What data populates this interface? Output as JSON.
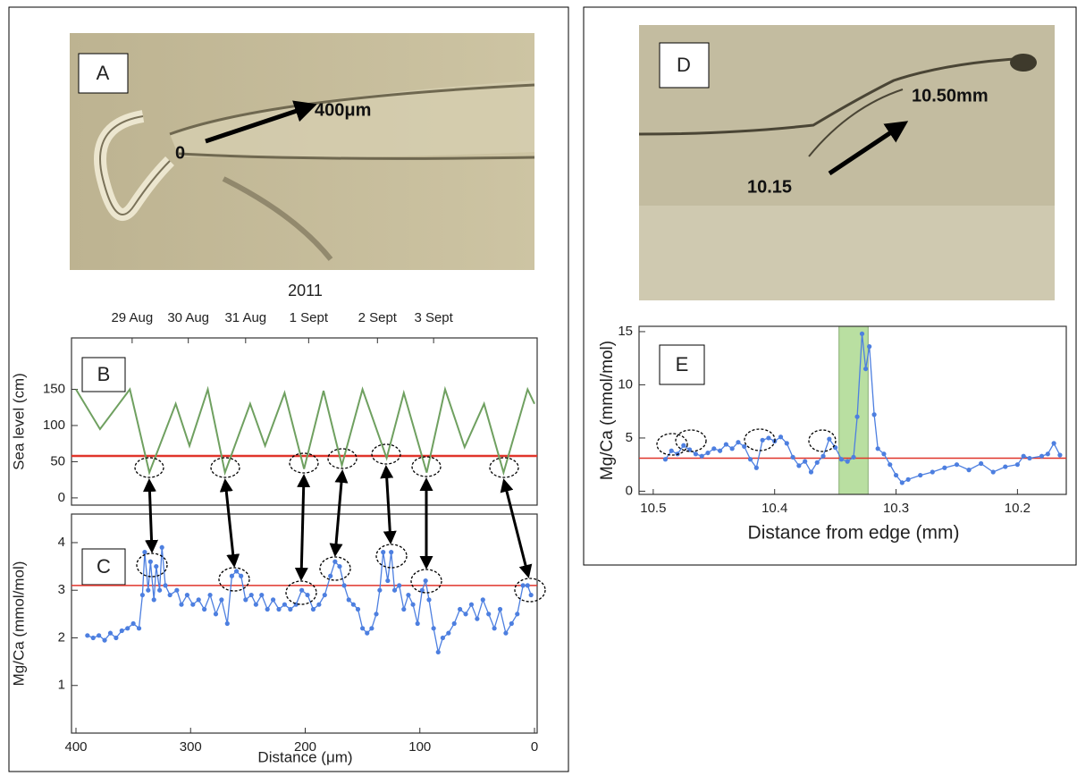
{
  "panel_labels": [
    "A",
    "B",
    "C",
    "D",
    "E"
  ],
  "photo_a": {
    "annotations": [
      "0",
      "400μm"
    ]
  },
  "photo_d": {
    "annotations": [
      "10.15",
      "10.50mm"
    ]
  },
  "chart_data": [
    {
      "type": "line",
      "ylabel": "Sea level (cm)",
      "top_label": "2011",
      "top_ticks": [
        {
          "value": 351,
          "label": "29 Aug"
        },
        {
          "value": 302,
          "label": "30 Aug"
        },
        {
          "value": 252,
          "label": "31 Aug"
        },
        {
          "value": 197,
          "label": "1 Sept"
        },
        {
          "value": 137,
          "label": "2 Sept"
        },
        {
          "value": 88,
          "label": "3 Sept"
        }
      ],
      "x": [
        400,
        379,
        353,
        336,
        313,
        301,
        285,
        270,
        248,
        235,
        218,
        201,
        184,
        168,
        150,
        129,
        114,
        94,
        78,
        61,
        44,
        27,
        6,
        0
      ],
      "series": [
        {
          "color": "#6fa060",
          "values": [
            150,
            95,
            150,
            35,
            130,
            72,
            150,
            35,
            130,
            72,
            145,
            40,
            148,
            45,
            150,
            55,
            145,
            35,
            150,
            70,
            130,
            35,
            150,
            130
          ]
        }
      ],
      "xlim": [
        400,
        0
      ],
      "ylim": [
        -10,
        221
      ],
      "yticks": [
        0,
        50,
        100,
        150
      ],
      "reference_line": 58,
      "reference_color": "#e0352b",
      "markers": false
    },
    {
      "type": "line",
      "ylabel": "Mg/Ca (mmol/mol)",
      "xlabel": "Distance (μm)",
      "x": [
        390,
        385,
        380,
        375,
        370,
        365,
        360,
        355,
        350,
        345,
        342,
        340,
        337,
        335,
        332,
        330,
        327,
        325,
        322,
        318,
        312,
        308,
        303,
        298,
        293,
        288,
        283,
        278,
        273,
        268,
        264,
        260,
        256,
        252,
        247,
        243,
        238,
        233,
        228,
        223,
        218,
        213,
        208,
        203,
        198,
        193,
        188,
        183,
        178,
        174,
        170,
        166,
        162,
        158,
        154,
        150,
        146,
        142,
        138,
        135,
        132,
        128,
        125,
        122,
        118,
        114,
        110,
        106,
        102,
        98,
        95,
        92,
        88,
        84,
        80,
        75,
        70,
        65,
        60,
        55,
        50,
        45,
        40,
        35,
        30,
        25,
        20,
        15,
        10,
        6,
        3
      ],
      "series": [
        {
          "color": "#4d7fe0",
          "values": [
            2.05,
            2.0,
            2.05,
            1.95,
            2.1,
            2.0,
            2.15,
            2.2,
            2.3,
            2.2,
            2.9,
            3.8,
            3.0,
            3.6,
            2.8,
            3.5,
            3.0,
            3.9,
            3.1,
            2.9,
            3.0,
            2.7,
            2.9,
            2.7,
            2.8,
            2.6,
            2.9,
            2.5,
            2.8,
            2.3,
            3.3,
            3.4,
            3.3,
            2.8,
            2.9,
            2.7,
            2.9,
            2.6,
            2.8,
            2.6,
            2.7,
            2.6,
            2.7,
            3.0,
            2.9,
            2.6,
            2.7,
            2.9,
            3.3,
            3.6,
            3.5,
            3.1,
            2.8,
            2.7,
            2.6,
            2.2,
            2.1,
            2.2,
            2.5,
            3.0,
            3.8,
            3.2,
            3.8,
            3.0,
            3.1,
            2.6,
            2.9,
            2.7,
            2.3,
            3.0,
            3.2,
            2.8,
            2.2,
            1.7,
            2.0,
            2.1,
            2.3,
            2.6,
            2.5,
            2.7,
            2.4,
            2.8,
            2.5,
            2.2,
            2.6,
            2.1,
            2.3,
            2.5,
            3.1,
            3.1,
            2.9
          ]
        }
      ],
      "xlim": [
        400,
        0
      ],
      "ylim": [
        0,
        4.6
      ],
      "xticks": [
        400,
        300,
        200,
        100,
        0
      ],
      "yticks": [
        1,
        2,
        3,
        4
      ],
      "reference_line": 3.1,
      "reference_color": "#e0352b",
      "markers": true
    },
    {
      "type": "line",
      "ylabel": "Mg/Ca (mmol/mol)",
      "xlabel": "Distance from edge (mm)",
      "x": [
        10.49,
        10.485,
        10.48,
        10.475,
        10.47,
        10.465,
        10.46,
        10.455,
        10.45,
        10.445,
        10.44,
        10.435,
        10.43,
        10.425,
        10.42,
        10.415,
        10.41,
        10.405,
        10.4,
        10.395,
        10.39,
        10.385,
        10.38,
        10.375,
        10.37,
        10.365,
        10.36,
        10.355,
        10.35,
        10.345,
        10.34,
        10.335,
        10.332,
        10.328,
        10.325,
        10.322,
        10.318,
        10.315,
        10.31,
        10.305,
        10.3,
        10.295,
        10.29,
        10.28,
        10.27,
        10.26,
        10.25,
        10.24,
        10.23,
        10.22,
        10.21,
        10.2,
        10.195,
        10.19,
        10.18,
        10.175,
        10.17,
        10.165
      ],
      "series": [
        {
          "color": "#4d7fe0",
          "values": [
            3.0,
            3.8,
            3.5,
            4.3,
            3.9,
            3.5,
            3.3,
            3.6,
            4.0,
            3.8,
            4.4,
            4.0,
            4.6,
            4.2,
            3.0,
            2.2,
            4.8,
            5.0,
            4.7,
            5.1,
            4.5,
            3.2,
            2.4,
            2.8,
            1.8,
            2.7,
            3.3,
            4.9,
            4.1,
            3.0,
            2.8,
            3.2,
            7.0,
            14.8,
            11.5,
            13.6,
            7.2,
            4.0,
            3.5,
            2.5,
            1.5,
            0.8,
            1.1,
            1.5,
            1.8,
            2.2,
            2.5,
            2.0,
            2.6,
            1.8,
            2.3,
            2.5,
            3.3,
            3.1,
            3.3,
            3.5,
            4.5,
            3.4
          ]
        }
      ],
      "xlim": [
        10.508,
        10.162
      ],
      "ylim": [
        -0.3,
        15.5
      ],
      "xticks": [
        10.5,
        10.4,
        10.3,
        10.2
      ],
      "yticks": [
        0,
        5,
        10,
        15
      ],
      "reference_line": 3.1,
      "reference_color": "#e0352b",
      "markers": true,
      "highlight_span": [
        10.347,
        10.323
      ],
      "highlight_color": "#a8d88a"
    }
  ]
}
